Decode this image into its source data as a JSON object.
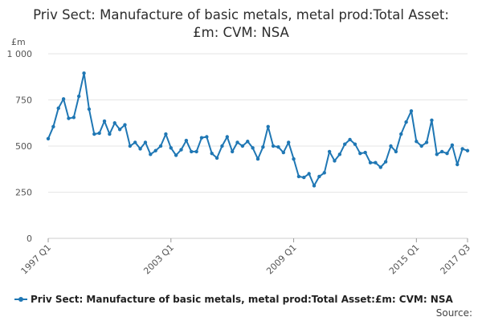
{
  "chart_data": {
    "type": "line",
    "title": "Priv Sect: Manufacture of basic metals, metal prod:Total Asset:£m: CVM: NSA",
    "ylabel": "£m",
    "xlabel": "",
    "ylim": [
      0,
      1000
    ],
    "yticks": [
      0,
      250,
      500,
      750,
      1000
    ],
    "ytick_labels": [
      "0",
      "250",
      "500",
      "750",
      "1 000"
    ],
    "xtick_labels": [
      "1997 Q1",
      "2003 Q1",
      "2009 Q1",
      "2015 Q1",
      "2017 Q3"
    ],
    "xtick_index": [
      0,
      24,
      48,
      72,
      82
    ],
    "grid": true,
    "legend_position": "bottom",
    "color": "#1f77b4",
    "series": [
      {
        "name": "Priv Sect: Manufacture of basic metals, metal prod:Total Asset:£m: CVM: NSA",
        "x": [
          "1997 Q1",
          "1997 Q2",
          "1997 Q3",
          "1997 Q4",
          "1998 Q1",
          "1998 Q2",
          "1998 Q3",
          "1998 Q4",
          "1999 Q1",
          "1999 Q2",
          "1999 Q3",
          "1999 Q4",
          "2000 Q1",
          "2000 Q2",
          "2000 Q3",
          "2000 Q4",
          "2001 Q1",
          "2001 Q2",
          "2001 Q3",
          "2001 Q4",
          "2002 Q1",
          "2002 Q2",
          "2002 Q3",
          "2002 Q4",
          "2003 Q1",
          "2003 Q2",
          "2003 Q3",
          "2003 Q4",
          "2004 Q1",
          "2004 Q2",
          "2004 Q3",
          "2004 Q4",
          "2005 Q1",
          "2005 Q2",
          "2005 Q3",
          "2005 Q4",
          "2006 Q1",
          "2006 Q2",
          "2006 Q3",
          "2006 Q4",
          "2007 Q1",
          "2007 Q2",
          "2007 Q3",
          "2007 Q4",
          "2008 Q1",
          "2008 Q2",
          "2008 Q3",
          "2008 Q4",
          "2009 Q1",
          "2009 Q2",
          "2009 Q3",
          "2009 Q4",
          "2010 Q1",
          "2010 Q2",
          "2010 Q3",
          "2010 Q4",
          "2011 Q1",
          "2011 Q2",
          "2011 Q3",
          "2011 Q4",
          "2012 Q1",
          "2012 Q2",
          "2012 Q3",
          "2012 Q4",
          "2013 Q1",
          "2013 Q2",
          "2013 Q3",
          "2013 Q4",
          "2014 Q1",
          "2014 Q2",
          "2014 Q3",
          "2014 Q4",
          "2015 Q1",
          "2015 Q2",
          "2015 Q3",
          "2015 Q4",
          "2016 Q1",
          "2016 Q2",
          "2016 Q3",
          "2016 Q4",
          "2017 Q1",
          "2017 Q2",
          "2017 Q3"
        ],
        "values": [
          540,
          605,
          705,
          755,
          650,
          655,
          770,
          895,
          700,
          565,
          570,
          635,
          565,
          625,
          590,
          615,
          500,
          520,
          485,
          520,
          455,
          475,
          500,
          565,
          490,
          450,
          480,
          530,
          470,
          470,
          545,
          550,
          460,
          435,
          500,
          550,
          470,
          520,
          500,
          525,
          490,
          430,
          495,
          605,
          500,
          495,
          465,
          520,
          430,
          335,
          330,
          350,
          285,
          335,
          355,
          470,
          420,
          455,
          510,
          535,
          510,
          460,
          465,
          410,
          410,
          385,
          415,
          500,
          470,
          565,
          630,
          690,
          525,
          500,
          520,
          640,
          455,
          470,
          460,
          505,
          400,
          485,
          475
        ]
      }
    ]
  },
  "legend": {
    "label": "Priv Sect: Manufacture of basic metals, metal prod:Total Asset:£m: CVM: NSA"
  },
  "source": {
    "label": "Source:"
  }
}
